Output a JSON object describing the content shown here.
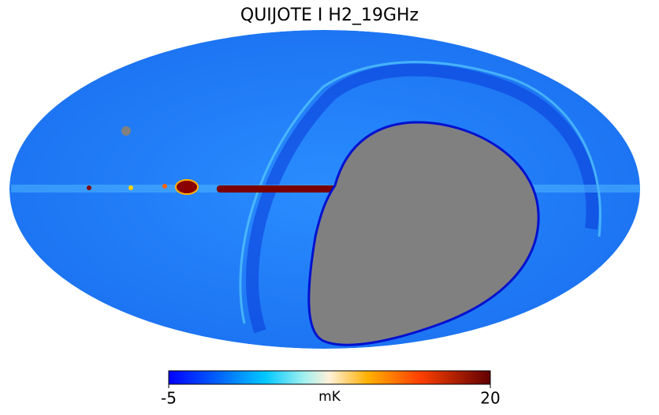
{
  "title": "QUIJOTE I H2_19GHz",
  "colorbar": {
    "min": -5,
    "max": 20,
    "unit": "mK"
  }
}
